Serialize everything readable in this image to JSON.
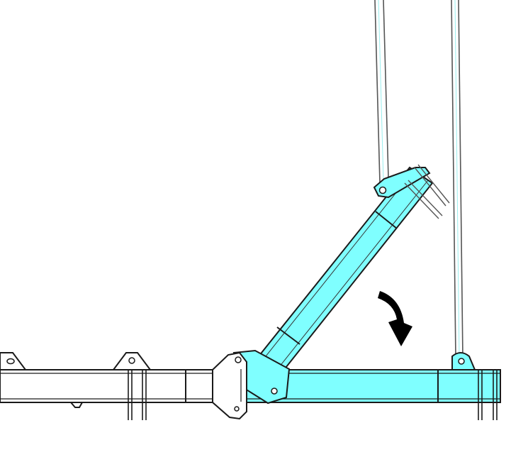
{
  "diagram": {
    "colors": {
      "highlight": "#7fffff",
      "stroke": "#1a1a1a",
      "cable": "#555555",
      "arrow": "#000000",
      "background": "#ffffff"
    },
    "parts": [
      {
        "id": "left-boom-section",
        "label": "",
        "highlighted": false
      },
      {
        "id": "right-base-section",
        "label": "",
        "highlighted": true
      },
      {
        "id": "inclined-boom-section",
        "label": "",
        "highlighted": true
      },
      {
        "id": "pivot-joint",
        "label": "",
        "highlighted": true
      },
      {
        "id": "suspension-cables",
        "label": "",
        "highlighted": false
      }
    ],
    "arrow": {
      "icon": "rotate-down-arrow-icon",
      "direction": "clockwise-down"
    }
  }
}
